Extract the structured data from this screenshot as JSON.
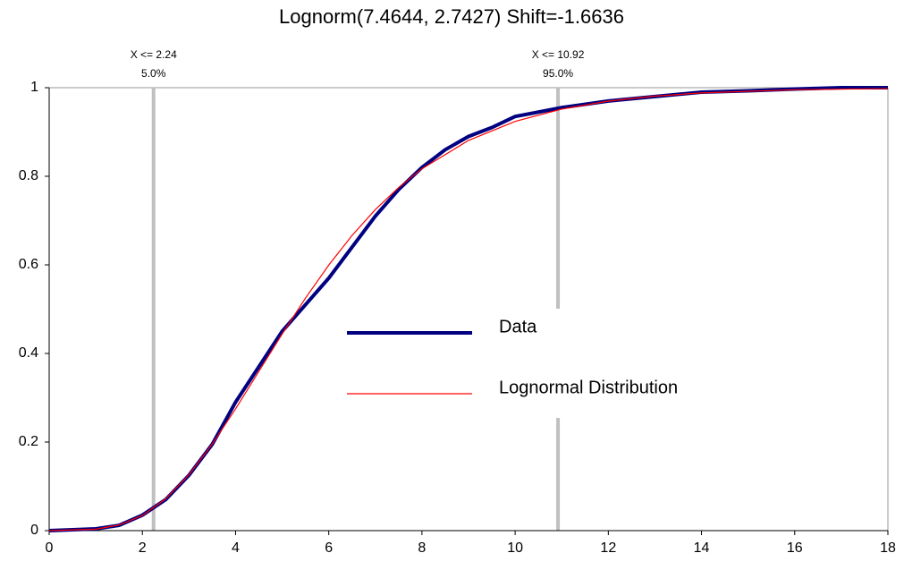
{
  "chart_data": {
    "type": "line",
    "title": "Lognorm(7.4644, 2.7427) Shift=-1.6636",
    "xlim": [
      0,
      18
    ],
    "xticks": [
      0,
      2,
      4,
      6,
      8,
      10,
      12,
      14,
      16,
      18
    ],
    "ylim": [
      0,
      1
    ],
    "yticks": [
      0,
      0.2,
      0.4,
      0.6,
      0.8,
      1
    ],
    "series": [
      {
        "name": "Data",
        "color": "#000080",
        "x": [
          0,
          1,
          1.5,
          2,
          2.5,
          3,
          3.5,
          4,
          4.5,
          5,
          5.5,
          6,
          6.5,
          7,
          7.5,
          8,
          8.5,
          9,
          9.5,
          10,
          10.5,
          11,
          12,
          13,
          14,
          15,
          16,
          17,
          18
        ],
        "values": [
          0,
          0.004,
          0.012,
          0.035,
          0.07,
          0.125,
          0.195,
          0.29,
          0.37,
          0.45,
          0.51,
          0.57,
          0.64,
          0.71,
          0.77,
          0.82,
          0.86,
          0.89,
          0.91,
          0.935,
          0.945,
          0.955,
          0.97,
          0.98,
          0.99,
          0.993,
          0.997,
          1.0,
          1.0
        ]
      },
      {
        "name": "Lognormal Distribution",
        "color": "#ff0000",
        "x": [
          0,
          1,
          1.5,
          2,
          2.5,
          3,
          3.5,
          4,
          4.5,
          5,
          5.5,
          6,
          6.5,
          7,
          7.5,
          8,
          9,
          10,
          11,
          12,
          13,
          14,
          16,
          18
        ],
        "values": [
          0,
          0.0033,
          0.0127,
          0.0342,
          0.0717,
          0.1263,
          0.1955,
          0.2749,
          0.3594,
          0.4439,
          0.5249,
          0.5995,
          0.6664,
          0.7248,
          0.7746,
          0.817,
          0.881,
          0.9239,
          0.9518,
          0.9697,
          0.981,
          0.9881,
          0.9953,
          0.9981
        ]
      }
    ],
    "markers": [
      {
        "x": 2.24,
        "label": "X <= 2.24",
        "probability_label": "5.0%"
      },
      {
        "x": 10.92,
        "label": "X <= 10.92",
        "probability_label": "95.0%"
      }
    ]
  }
}
